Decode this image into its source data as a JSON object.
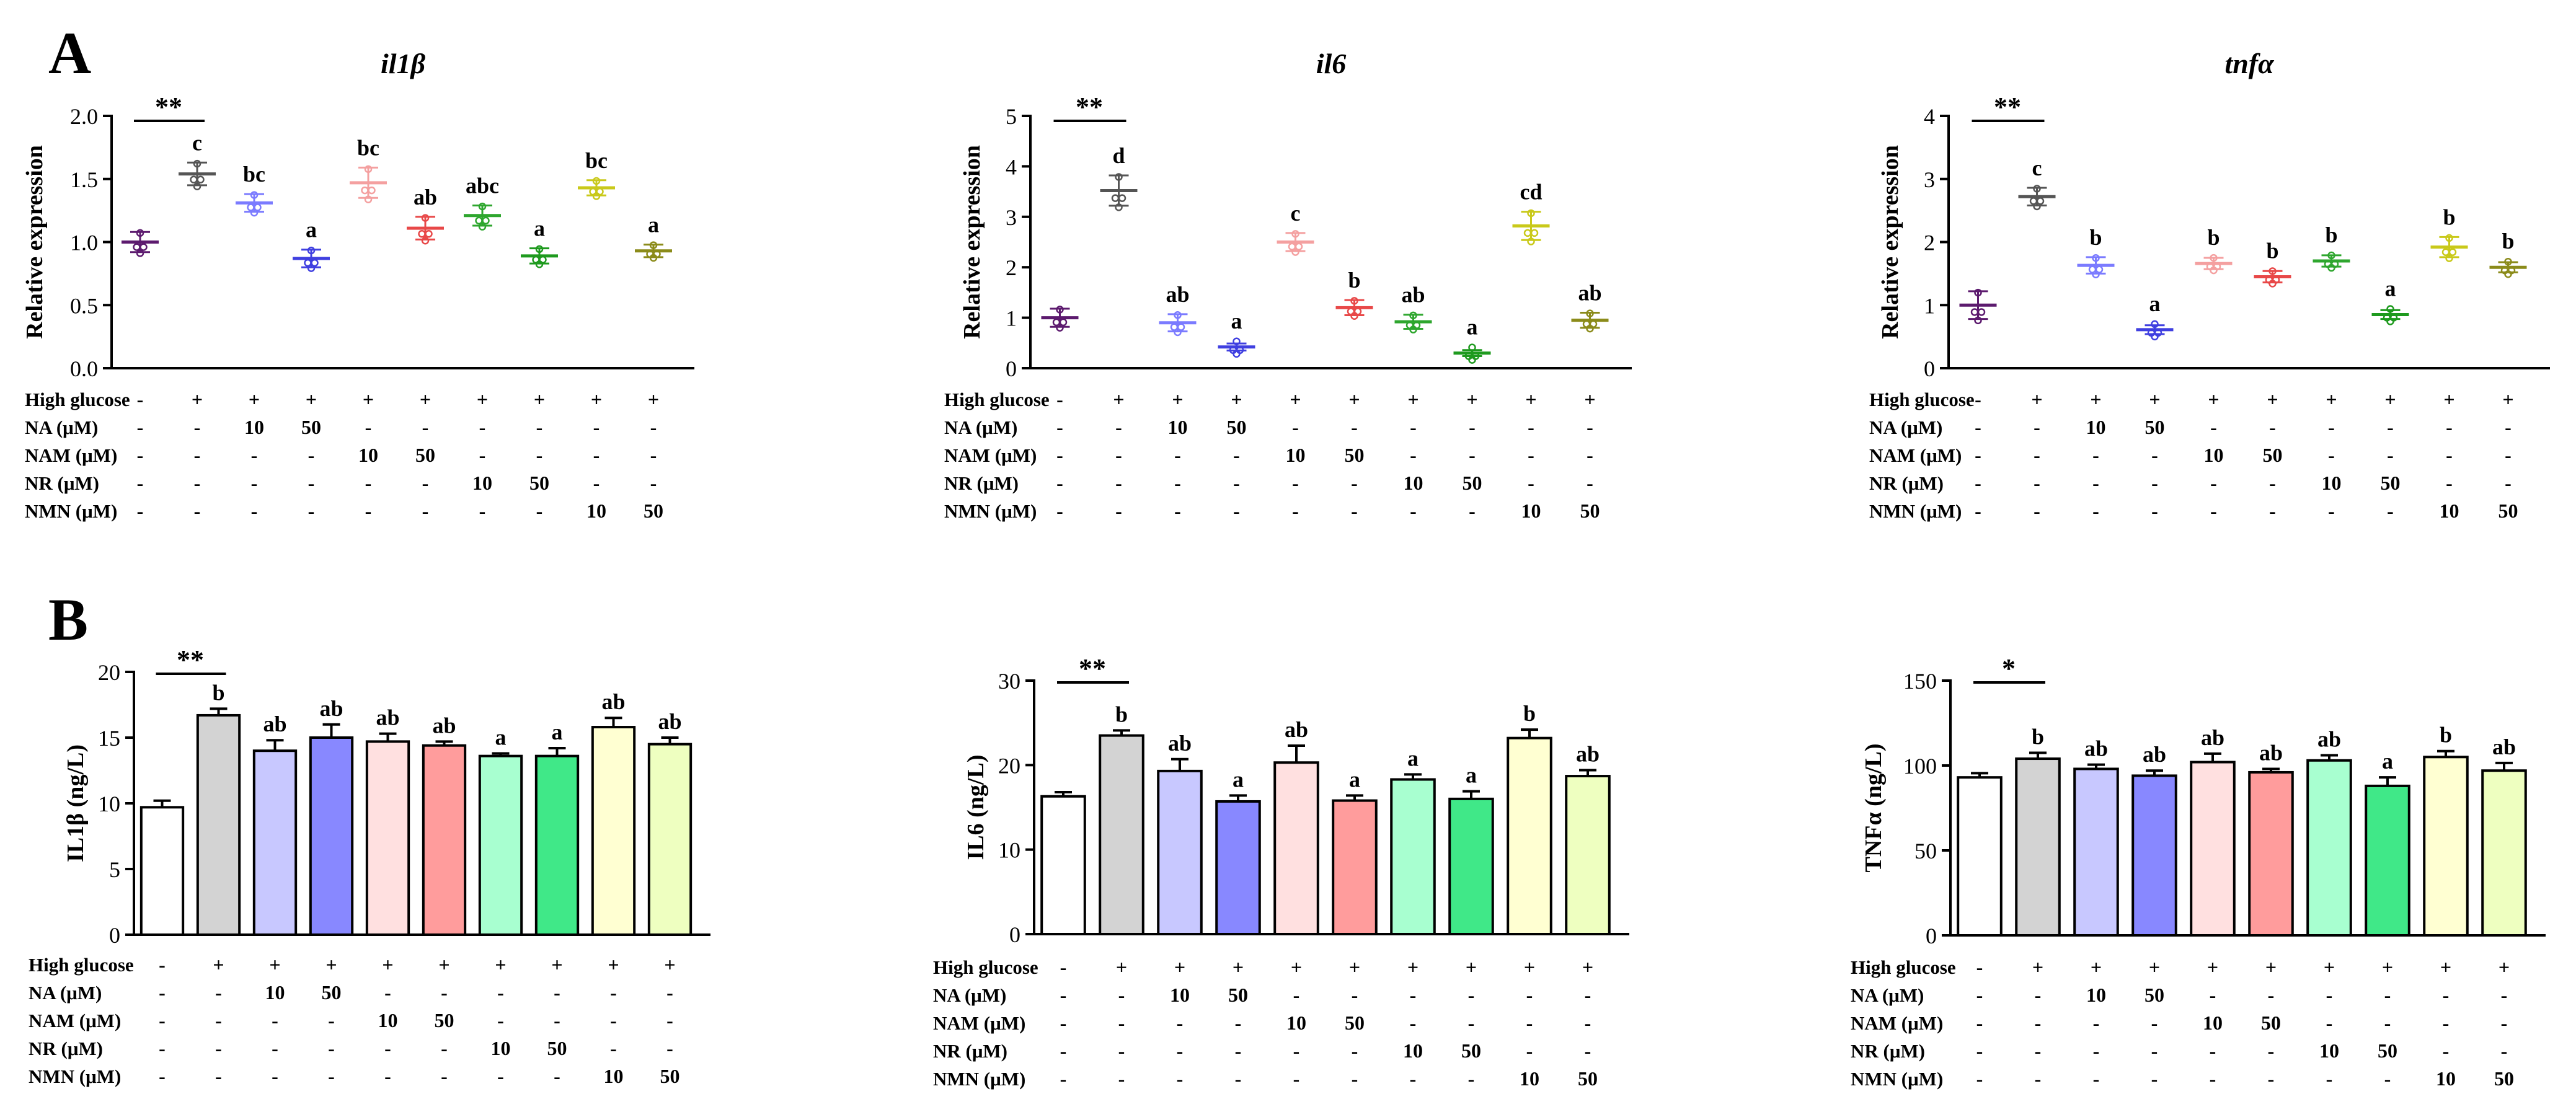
{
  "panels": [
    {
      "letter": "A"
    },
    {
      "letter": "B"
    }
  ],
  "treatment_table": {
    "row_labels": [
      "High glucose",
      "NA (μM)",
      "NAM (μM)",
      "NR (μM)",
      "NMN (μM)"
    ],
    "rows": [
      [
        "-",
        "+",
        "+",
        "+",
        "+",
        "+",
        "+",
        "+",
        "+",
        "+"
      ],
      [
        "-",
        "-",
        "10",
        "50",
        "-",
        "-",
        "-",
        "-",
        "-",
        "-"
      ],
      [
        "-",
        "-",
        "-",
        "-",
        "10",
        "50",
        "-",
        "-",
        "-",
        "-"
      ],
      [
        "-",
        "-",
        "-",
        "-",
        "-",
        "-",
        "10",
        "50",
        "-",
        "-"
      ],
      [
        "-",
        "-",
        "-",
        "-",
        "-",
        "-",
        "-",
        "-",
        "10",
        "50"
      ]
    ]
  },
  "group_colors": [
    "#5c1a6e",
    "#555555",
    "#7b7bff",
    "#3f3fe0",
    "#f4a0a0",
    "#e84848",
    "#2ea62e",
    "#1e9a1e",
    "#c9c91a",
    "#8b8b1a"
  ],
  "bar_fills": [
    "#ffffff",
    "#d3d3d3",
    "#c8c8ff",
    "#8888ff",
    "#ffe0e0",
    "#ff9c9c",
    "#a8ffd0",
    "#40e888",
    "#ffffd2",
    "#eeffc0"
  ],
  "chart_data": [
    {
      "type": "scatter",
      "title": "il1β",
      "ylabel": "Relative expression",
      "ylim": [
        0,
        2.0
      ],
      "yticks": [
        "0.0",
        "0.5",
        "1.0",
        "1.5",
        "2.0"
      ],
      "means": [
        1.0,
        1.54,
        1.31,
        0.87,
        1.47,
        1.11,
        1.21,
        0.89,
        1.43,
        0.93
      ],
      "sems": [
        0.08,
        0.09,
        0.07,
        0.07,
        0.12,
        0.09,
        0.08,
        0.06,
        0.06,
        0.05
      ],
      "letters": [
        "",
        "c",
        "bc",
        "a",
        "bc",
        "ab",
        "abc",
        "a",
        "bc",
        "a"
      ],
      "significance": "**"
    },
    {
      "type": "scatter",
      "title": "il6",
      "ylabel": "Relative expression",
      "ylim": [
        0,
        5
      ],
      "yticks": [
        "0",
        "1",
        "2",
        "3",
        "4",
        "5"
      ],
      "means": [
        1.0,
        3.52,
        0.9,
        0.42,
        2.5,
        1.2,
        0.92,
        0.3,
        2.82,
        0.95
      ],
      "sems": [
        0.18,
        0.3,
        0.17,
        0.07,
        0.18,
        0.15,
        0.14,
        0.06,
        0.28,
        0.15
      ],
      "letters": [
        "",
        "d",
        "ab",
        "a",
        "c",
        "b",
        "ab",
        "a",
        "cd",
        "ab"
      ],
      "significance": "**"
    },
    {
      "type": "scatter",
      "title": "tnfα",
      "ylabel": "Relative expression",
      "ylim": [
        0,
        4
      ],
      "yticks": [
        "0",
        "1",
        "2",
        "3",
        "4"
      ],
      "means": [
        1.0,
        2.72,
        1.63,
        0.61,
        1.66,
        1.45,
        1.7,
        0.85,
        1.92,
        1.6
      ],
      "sems": [
        0.22,
        0.14,
        0.13,
        0.07,
        0.09,
        0.09,
        0.09,
        0.07,
        0.16,
        0.08
      ],
      "letters": [
        "",
        "c",
        "b",
        "a",
        "b",
        "b",
        "b",
        "a",
        "b",
        "b"
      ],
      "significance": "**"
    },
    {
      "type": "bar",
      "title": "",
      "ylabel": "IL1β (ng/L)",
      "ylim": [
        0,
        20
      ],
      "yticks": [
        "0",
        "5",
        "10",
        "15",
        "20"
      ],
      "means": [
        9.7,
        16.7,
        14.0,
        15.0,
        14.7,
        14.4,
        13.6,
        13.6,
        15.8,
        14.5
      ],
      "sems": [
        0.5,
        0.5,
        0.8,
        1.0,
        0.6,
        0.3,
        0.2,
        0.6,
        0.7,
        0.5
      ],
      "letters": [
        "",
        "b",
        "ab",
        "ab",
        "ab",
        "ab",
        "a",
        "a",
        "ab",
        "ab"
      ],
      "significance": "**"
    },
    {
      "type": "bar",
      "title": "",
      "ylabel": "IL6 (ng/L)",
      "ylim": [
        0,
        30
      ],
      "yticks": [
        "0",
        "10",
        "20",
        "30"
      ],
      "means": [
        16.3,
        23.5,
        19.3,
        15.7,
        20.3,
        15.8,
        18.3,
        16.0,
        23.2,
        18.7
      ],
      "sems": [
        0.5,
        0.6,
        1.4,
        0.7,
        2.0,
        0.6,
        0.6,
        0.9,
        1.0,
        0.7
      ],
      "letters": [
        "",
        "b",
        "ab",
        "a",
        "ab",
        "a",
        "a",
        "a",
        "b",
        "ab"
      ],
      "significance": "**"
    },
    {
      "type": "bar",
      "title": "",
      "ylabel": "TNFα (ng/L)",
      "ylim": [
        0,
        150
      ],
      "yticks": [
        "0",
        "50",
        "100",
        "150"
      ],
      "means": [
        93,
        104,
        98,
        94,
        102,
        96,
        103,
        88,
        105,
        97
      ],
      "sems": [
        2.5,
        3.5,
        2.5,
        3.0,
        5.0,
        2.0,
        3.0,
        5.0,
        3.5,
        4.5
      ],
      "letters": [
        "",
        "b",
        "ab",
        "ab",
        "ab",
        "ab",
        "ab",
        "a",
        "b",
        "ab"
      ],
      "significance": "*"
    }
  ]
}
